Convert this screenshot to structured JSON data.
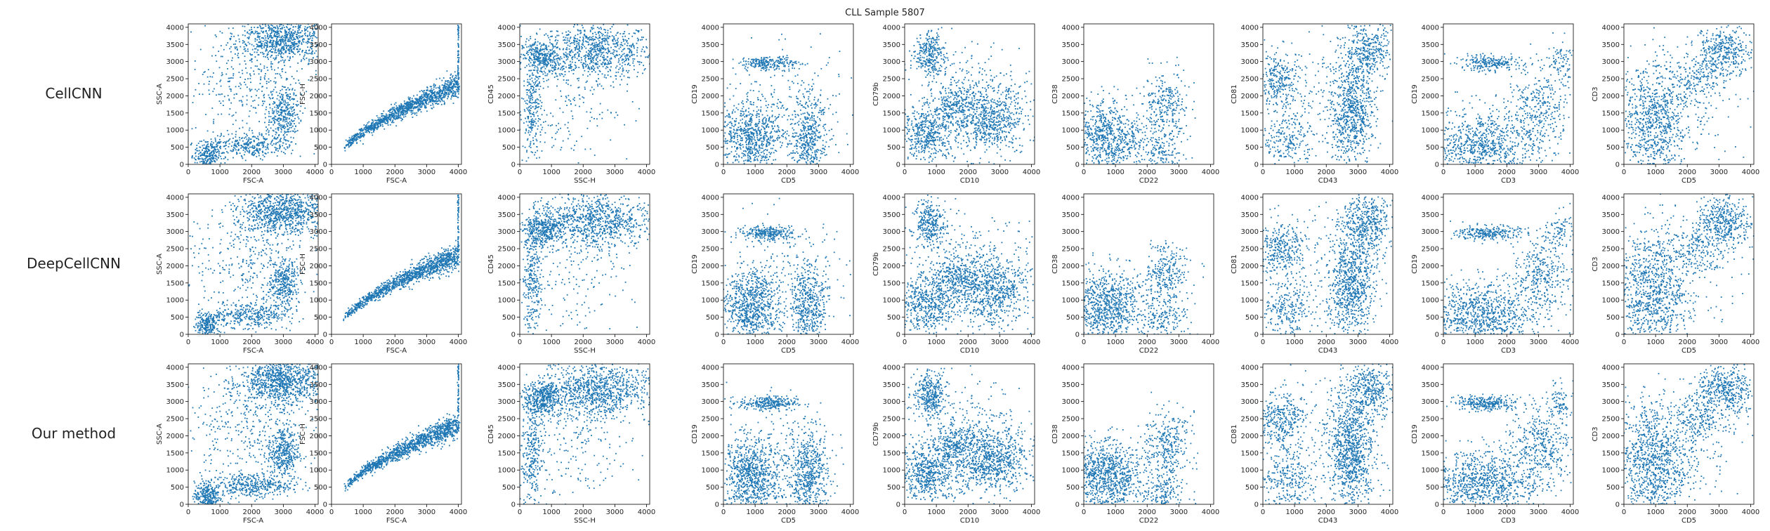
{
  "figure": {
    "title": "CLL Sample 5807",
    "row_labels": [
      "CellCNN",
      "DeepCellCNN",
      "Our method"
    ]
  },
  "colors": {
    "points": "#1f77b4",
    "highlight": "#bcbd22",
    "axes": "#000000"
  },
  "chart_data": {
    "type": "scatter",
    "xlim": [
      0,
      4100
    ],
    "ylim": [
      0,
      4100
    ],
    "ticks": [
      0,
      500,
      1000,
      1500,
      2000,
      2500,
      3000,
      3500,
      4000
    ],
    "x_ticks": [
      0,
      1000,
      2000,
      3000,
      4000
    ],
    "y_ticks": [
      0,
      500,
      1000,
      1500,
      2000,
      2500,
      3000,
      3500,
      4000
    ],
    "grid": false,
    "legend": "none",
    "panels": [
      {
        "xlabel": "FSC-A",
        "ylabel": "SSC-A",
        "clusters": [
          {
            "cx": 3000,
            "cy": 3600,
            "sx": 700,
            "sy": 350,
            "n": 900
          },
          {
            "cx": 3000,
            "cy": 1500,
            "sx": 250,
            "sy": 400,
            "n": 350
          },
          {
            "cx": 2000,
            "cy": 550,
            "sx": 650,
            "sy": 180,
            "n": 350
          },
          {
            "cx": 600,
            "cy": 250,
            "sx": 200,
            "sy": 200,
            "n": 250
          },
          {
            "cx": 1800,
            "cy": 2300,
            "sx": 900,
            "sy": 800,
            "n": 300
          }
        ]
      },
      {
        "xlabel": "FSC-A",
        "ylabel": "FSC-H",
        "curve": {
          "x0": 400,
          "y0": 400,
          "x1": 4000,
          "y1": 2300,
          "spread": 130,
          "n": 1200
        }
      },
      {
        "xlabel": "SSC-H",
        "ylabel": "CD45",
        "clusters": [
          {
            "cx": 2400,
            "cy": 3300,
            "sx": 900,
            "sy": 400,
            "n": 900
          },
          {
            "cx": 700,
            "cy": 3100,
            "sx": 300,
            "sy": 250,
            "n": 350
          },
          {
            "cx": 400,
            "cy": 1500,
            "sx": 150,
            "sy": 800,
            "n": 250
          },
          {
            "cx": 1500,
            "cy": 1800,
            "sx": 1000,
            "sy": 900,
            "n": 200
          }
        ]
      },
      {
        "xlabel": "CD5",
        "ylabel": "CD19",
        "clusters": [
          {
            "cx": 900,
            "cy": 800,
            "sx": 500,
            "sy": 550,
            "n": 800
          },
          {
            "cx": 2700,
            "cy": 800,
            "sx": 300,
            "sy": 650,
            "n": 500
          },
          {
            "cx": 1400,
            "cy": 2950,
            "sx": 450,
            "sy": 100,
            "n": 250
          },
          {
            "cx": 2000,
            "cy": 1800,
            "sx": 1000,
            "sy": 900,
            "n": 150
          }
        ]
      },
      {
        "xlabel": "CD10",
        "ylabel": "CD79b",
        "clusters": [
          {
            "cx": 800,
            "cy": 3200,
            "sx": 250,
            "sy": 350,
            "n": 300
          },
          {
            "cx": 2700,
            "cy": 1300,
            "sx": 600,
            "sy": 500,
            "n": 700
          },
          {
            "cx": 700,
            "cy": 900,
            "sx": 450,
            "sy": 400,
            "n": 500
          },
          {
            "cx": 1600,
            "cy": 1700,
            "sx": 350,
            "sy": 300,
            "n": 250
          },
          {
            "cx": 2000,
            "cy": 2000,
            "sx": 1100,
            "sy": 900,
            "n": 250
          }
        ]
      },
      {
        "xlabel": "CD22",
        "ylabel": "CD38",
        "clusters": [
          {
            "cx": 700,
            "cy": 800,
            "sx": 600,
            "sy": 550,
            "n": 900
          },
          {
            "cx": 2600,
            "cy": 1700,
            "sx": 350,
            "sy": 500,
            "n": 300
          },
          {
            "cx": 2500,
            "cy": 300,
            "sx": 400,
            "sy": 300,
            "n": 150
          }
        ]
      },
      {
        "xlabel": "CD43",
        "ylabel": "CD81",
        "clusters": [
          {
            "cx": 2800,
            "cy": 1500,
            "sx": 350,
            "sy": 800,
            "n": 800
          },
          {
            "cx": 3300,
            "cy": 3300,
            "sx": 400,
            "sy": 450,
            "n": 400
          },
          {
            "cx": 500,
            "cy": 2500,
            "sx": 400,
            "sy": 400,
            "n": 300
          },
          {
            "cx": 800,
            "cy": 700,
            "sx": 400,
            "sy": 450,
            "n": 250
          },
          {
            "cx": 1800,
            "cy": 2000,
            "sx": 1000,
            "sy": 900,
            "n": 150
          }
        ]
      },
      {
        "xlabel": "CD3",
        "ylabel": "CD19",
        "clusters": [
          {
            "cx": 1200,
            "cy": 600,
            "sx": 900,
            "sy": 500,
            "n": 900
          },
          {
            "cx": 3100,
            "cy": 1700,
            "sx": 450,
            "sy": 600,
            "n": 350
          },
          {
            "cx": 1400,
            "cy": 2950,
            "sx": 500,
            "sy": 110,
            "n": 250
          },
          {
            "cx": 3700,
            "cy": 3000,
            "sx": 200,
            "sy": 300,
            "n": 80
          }
        ]
      },
      {
        "xlabel": "CD5",
        "ylabel": "CD3",
        "clusters": [
          {
            "cx": 900,
            "cy": 1200,
            "sx": 550,
            "sy": 900,
            "n": 900
          },
          {
            "cx": 3200,
            "cy": 3300,
            "sx": 450,
            "sy": 400,
            "n": 400
          },
          {
            "cx": 2300,
            "cy": 2500,
            "sx": 450,
            "sy": 400,
            "n": 200
          },
          {
            "cx": 1800,
            "cy": 1500,
            "sx": 1000,
            "sy": 1000,
            "n": 150
          }
        ]
      }
    ]
  }
}
